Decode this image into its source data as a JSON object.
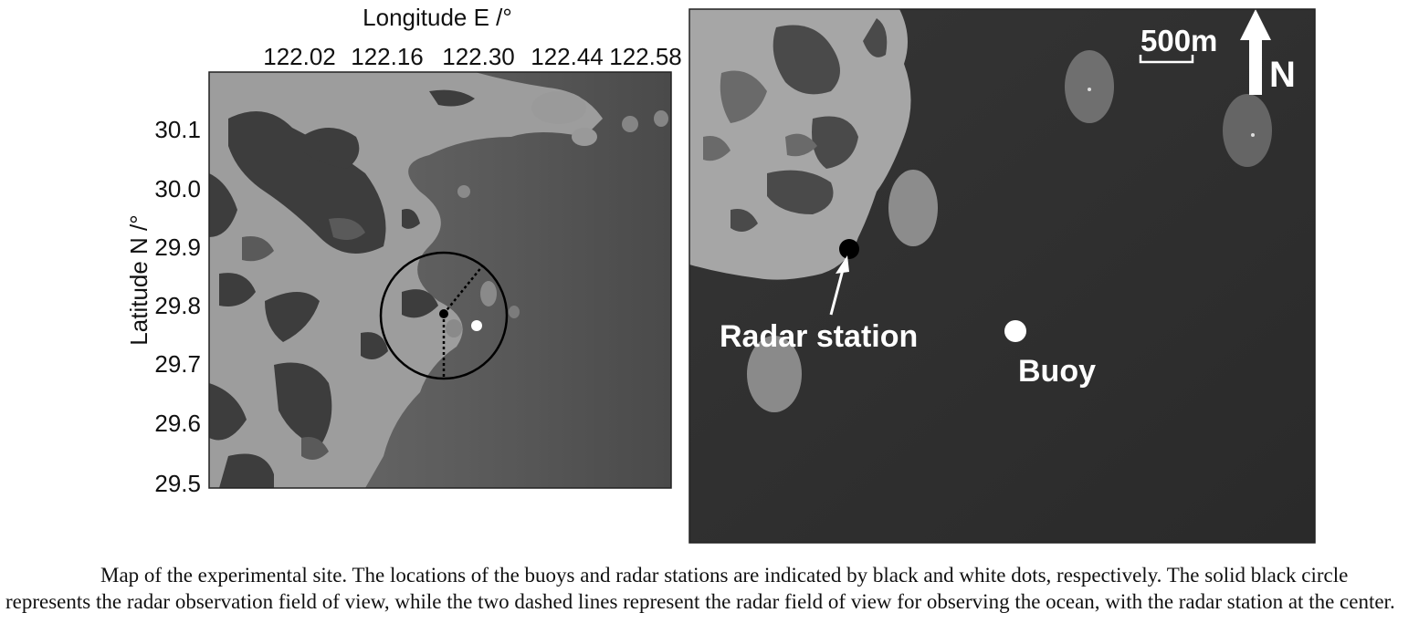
{
  "left_map": {
    "x_axis_title": "Longitude E /°",
    "y_axis_title": "Latitude N /°",
    "x_ticks": [
      "122.02",
      "122.16",
      "122.30",
      "122.44",
      "122.58"
    ],
    "y_ticks": [
      "30.1",
      "30.0",
      "29.9",
      "29.8",
      "29.7",
      "29.6",
      "29.5"
    ]
  },
  "right_map": {
    "scale_bar_label": "500m",
    "north_label": "N",
    "radar_label": "Radar station",
    "buoy_label": "Buoy",
    "north_arrow_icon": "north-arrow-icon"
  },
  "colors": {
    "land_dark": "#3a3a3a",
    "coast_light": "#a9a9a9",
    "sea": "#5a5a5a",
    "sea_dark": "#2e2e2e"
  },
  "caption": "Map of the experimental site. The locations of the buoys and radar stations are indicated by black and white dots, respectively. The solid black circle represents the radar observation field of view, while the two dashed lines represent the radar field of view for observing the ocean, with the radar station at the center."
}
